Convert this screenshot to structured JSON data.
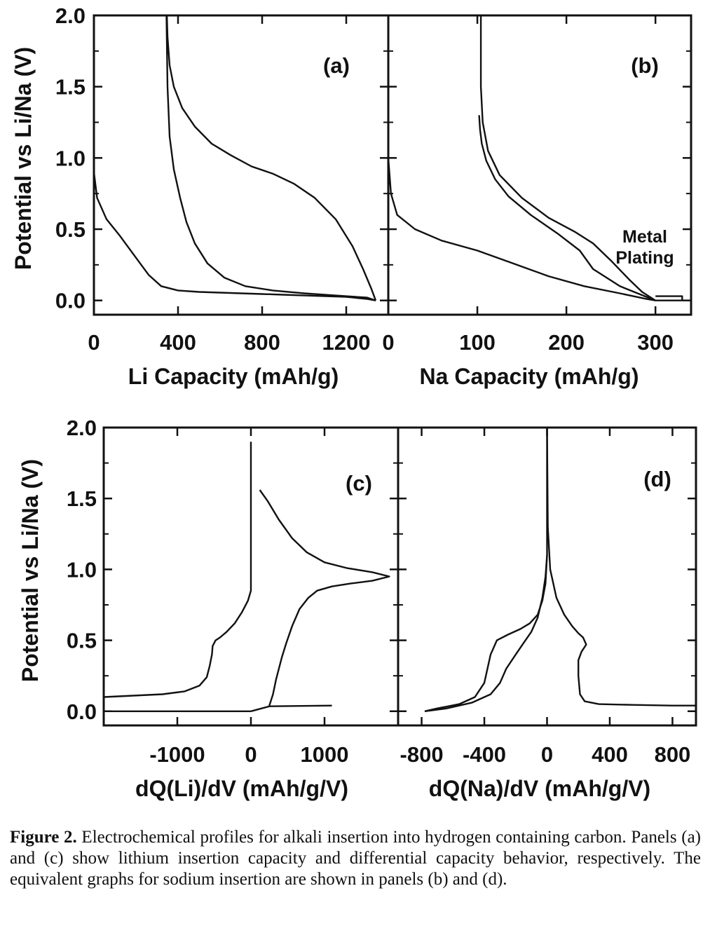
{
  "figure": {
    "caption_label": "Figure 2.",
    "caption_text": "Electrochemical profiles for alkali insertion into hydrogen containing carbon. Panels (a) and (c) show lithium insertion capacity and differential capacity behavior, respectively. The equivalent graphs for sodium insertion are shown in panels (b) and (d)."
  },
  "chart_data": [
    {
      "panel": "(a)",
      "type": "line",
      "xlabel": "Li Capacity (mAh/g)",
      "ylabel": "Potential vs Li/Na (V)",
      "xlim": [
        0,
        1400
      ],
      "ylim": [
        -0.1,
        2.0
      ],
      "xticks": [
        0,
        400,
        800,
        1200
      ],
      "yticks": [
        "0.0",
        "0.5",
        "1.0",
        "1.5",
        "2.0"
      ],
      "series": [
        {
          "x": [
            0,
            15,
            60,
            120,
            200,
            260,
            320,
            400,
            500,
            600,
            700,
            800,
            900,
            1000,
            1100,
            1200,
            1300,
            1340
          ],
          "y": [
            0.9,
            0.72,
            0.57,
            0.46,
            0.3,
            0.18,
            0.1,
            0.07,
            0.06,
            0.055,
            0.05,
            0.045,
            0.04,
            0.035,
            0.03,
            0.025,
            0.01,
            0.0
          ]
        },
        {
          "x": [
            1340,
            1320,
            1280,
            1230,
            1150,
            1050,
            950,
            850,
            750,
            650,
            560,
            480,
            420,
            380,
            360,
            350,
            347
          ],
          "y": [
            0.0,
            0.08,
            0.22,
            0.38,
            0.57,
            0.72,
            0.82,
            0.89,
            0.94,
            1.02,
            1.1,
            1.22,
            1.35,
            1.5,
            1.65,
            1.85,
            2.0
          ]
        },
        {
          "x": [
            345,
            350,
            360,
            380,
            410,
            440,
            480,
            540,
            620,
            720,
            850,
            1000,
            1150,
            1300,
            1340
          ],
          "y": [
            2.0,
            1.5,
            1.15,
            0.92,
            0.72,
            0.55,
            0.4,
            0.26,
            0.16,
            0.1,
            0.07,
            0.05,
            0.035,
            0.02,
            0.0
          ]
        }
      ]
    },
    {
      "panel": "(b)",
      "type": "line",
      "xlabel": "Na Capacity (mAh/g)",
      "xlim": [
        0,
        340
      ],
      "ylim": [
        -0.1,
        2.0
      ],
      "xticks": [
        0,
        100,
        200,
        300
      ],
      "annotation": "Metal Plating",
      "series": [
        {
          "x": [
            0,
            3,
            10,
            30,
            60,
            100,
            140,
            180,
            220,
            260,
            290,
            300
          ],
          "y": [
            1.0,
            0.75,
            0.6,
            0.5,
            0.42,
            0.35,
            0.26,
            0.17,
            0.1,
            0.05,
            0.01,
            0.0
          ]
        },
        {
          "x": [
            300,
            330,
            330,
            300
          ],
          "y": [
            0.0,
            0.0,
            0.03,
            0.03
          ]
        },
        {
          "x": [
            300,
            260,
            230,
            215,
            190,
            160,
            135,
            120,
            110,
            105,
            103,
            102
          ],
          "y": [
            0.0,
            0.1,
            0.22,
            0.35,
            0.47,
            0.6,
            0.73,
            0.85,
            0.98,
            1.1,
            1.2,
            1.3
          ]
        },
        {
          "x": [
            104,
            104,
            106,
            112,
            125,
            150,
            180,
            210,
            230,
            250,
            270,
            285,
            300
          ],
          "y": [
            2.0,
            1.5,
            1.25,
            1.05,
            0.88,
            0.72,
            0.58,
            0.48,
            0.4,
            0.28,
            0.15,
            0.06,
            0.0
          ]
        }
      ]
    },
    {
      "panel": "(c)",
      "type": "line",
      "xlabel": "dQ(Li)/dV (mAh/g/V)",
      "ylabel": "Potential vs Li/Na (V)",
      "xlim": [
        -2000,
        2000
      ],
      "ylim": [
        -0.1,
        2.0
      ],
      "xticks": [
        -1000,
        0,
        1000
      ],
      "yticks": [
        "0.0",
        "0.5",
        "1.0",
        "1.5",
        "2.0"
      ],
      "series": [
        {
          "x": [
            0,
            0,
            -40,
            -120,
            -220,
            -330,
            -420,
            -480,
            -520,
            -530,
            -560,
            -600,
            -700,
            -900,
            -1200,
            -1600,
            -2000
          ],
          "y": [
            1.9,
            0.85,
            0.78,
            0.7,
            0.62,
            0.56,
            0.52,
            0.5,
            0.46,
            0.4,
            0.32,
            0.24,
            0.18,
            0.14,
            0.12,
            0.11,
            0.1
          ]
        },
        {
          "x": [
            -1900,
            0
          ],
          "y": [
            0.0,
            0.0
          ]
        },
        {
          "x": [
            0,
            250,
            1100
          ],
          "y": [
            0.0,
            0.035,
            0.04
          ]
        },
        {
          "x": [
            250,
            300,
            340,
            380,
            420,
            480,
            560,
            660,
            780,
            900,
            1100,
            1350,
            1650,
            1880,
            1650,
            1300,
            1000,
            760,
            560,
            380,
            230,
            120
          ],
          "y": [
            0.04,
            0.12,
            0.22,
            0.3,
            0.38,
            0.48,
            0.6,
            0.72,
            0.8,
            0.85,
            0.88,
            0.9,
            0.92,
            0.95,
            0.98,
            1.01,
            1.05,
            1.12,
            1.22,
            1.35,
            1.48,
            1.56
          ]
        }
      ]
    },
    {
      "panel": "(d)",
      "type": "line",
      "xlabel": "dQ(Na)/dV (mAh/g/V)",
      "xlim": [
        -950,
        950
      ],
      "ylim": [
        -0.1,
        2.0
      ],
      "xticks": [
        -800,
        -400,
        0,
        400,
        800
      ],
      "series": [
        {
          "x": [
            0,
            0,
            -10,
            -30,
            -60,
            -110,
            -170,
            -250,
            -320,
            -360,
            -380,
            -400,
            -460,
            -560,
            -700,
            -780
          ],
          "y": [
            2.0,
            1.1,
            0.9,
            0.78,
            0.68,
            0.62,
            0.58,
            0.54,
            0.5,
            0.4,
            0.3,
            0.2,
            0.1,
            0.05,
            0.02,
            0.0
          ]
        },
        {
          "x": [
            -780,
            -640,
            -480,
            -360,
            -300,
            -260,
            -200,
            -150,
            -100,
            -60,
            -30,
            -10,
            0
          ],
          "y": [
            0.0,
            0.02,
            0.06,
            0.12,
            0.2,
            0.3,
            0.4,
            0.48,
            0.56,
            0.66,
            0.8,
            0.95,
            1.1
          ]
        },
        {
          "x": [
            0,
            5,
            20,
            60,
            110,
            160,
            200,
            230,
            250,
            220,
            200,
            200,
            210,
            240,
            330,
            550,
            800,
            950
          ],
          "y": [
            2.0,
            1.3,
            1.0,
            0.8,
            0.68,
            0.6,
            0.55,
            0.52,
            0.47,
            0.42,
            0.36,
            0.25,
            0.12,
            0.07,
            0.05,
            0.045,
            0.04,
            0.04
          ]
        }
      ]
    }
  ]
}
